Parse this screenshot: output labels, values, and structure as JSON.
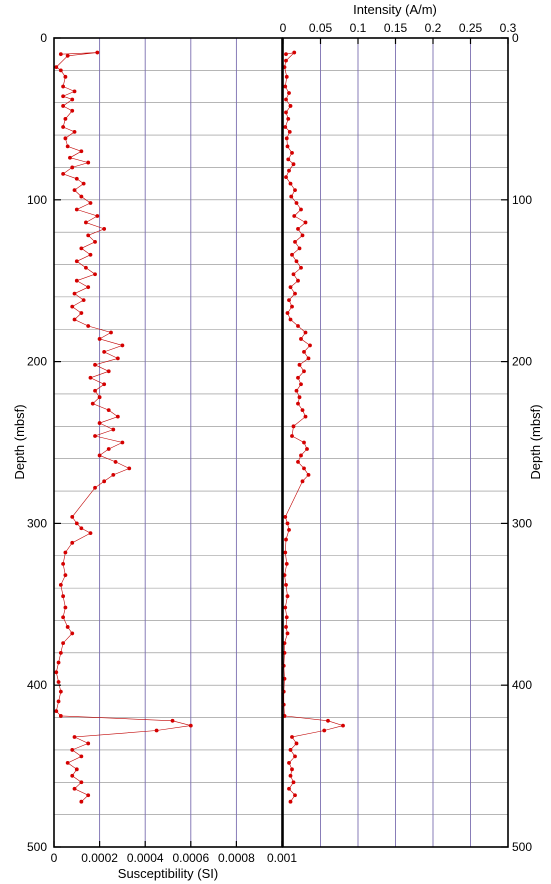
{
  "chart_data": [
    {
      "type": "line",
      "xlabel": "Susceptibility (SI)",
      "ylabel": "Depth (mbsf)",
      "xlim": [
        0,
        0.001
      ],
      "ylim": [
        0,
        500
      ],
      "y_reversed": true,
      "x_ticks": [
        "0",
        "0.0002",
        "0.0004",
        "0.0006",
        "0.0008",
        "0.001"
      ],
      "y_ticks": [
        "0",
        "100",
        "200",
        "300",
        "400",
        "500"
      ],
      "grid": "on",
      "colors": {
        "series": "#c00000",
        "marker": "#d40000",
        "grid": "#7b6fb0"
      },
      "series": [
        {
          "points": [
            [
              3e-05,
              10
            ],
            [
              0.00019,
              9
            ],
            [
              6e-05,
              11
            ],
            [
              1e-05,
              18
            ],
            [
              3e-05,
              20
            ],
            [
              5e-05,
              24
            ],
            [
              4e-05,
              30
            ],
            [
              9e-05,
              33
            ],
            [
              4e-05,
              36
            ],
            [
              8e-05,
              38
            ],
            [
              4e-05,
              42
            ],
            [
              8e-05,
              45
            ],
            [
              5e-05,
              50
            ],
            [
              4e-05,
              55
            ],
            [
              9e-05,
              58
            ],
            [
              5e-05,
              62
            ],
            [
              6e-05,
              67
            ],
            [
              0.00012,
              70
            ],
            [
              7e-05,
              74
            ],
            [
              0.00015,
              77
            ],
            [
              8e-05,
              80
            ],
            [
              4e-05,
              84
            ],
            [
              0.0001,
              87
            ],
            [
              0.00013,
              90
            ],
            [
              9e-05,
              94
            ],
            [
              0.00012,
              98
            ],
            [
              0.00016,
              102
            ],
            [
              0.0001,
              106
            ],
            [
              0.00019,
              110
            ],
            [
              0.00014,
              114
            ],
            [
              0.00022,
              118
            ],
            [
              0.00015,
              122
            ],
            [
              0.00018,
              126
            ],
            [
              0.00012,
              130
            ],
            [
              0.00016,
              134
            ],
            [
              0.0001,
              138
            ],
            [
              0.00014,
              142
            ],
            [
              0.00018,
              146
            ],
            [
              0.0001,
              150
            ],
            [
              0.00015,
              154
            ],
            [
              9e-05,
              158
            ],
            [
              0.00013,
              162
            ],
            [
              8e-05,
              166
            ],
            [
              0.00012,
              170
            ],
            [
              9e-05,
              174
            ],
            [
              0.00015,
              178
            ],
            [
              0.00025,
              182
            ],
            [
              0.0002,
              186
            ],
            [
              0.0003,
              190
            ],
            [
              0.00022,
              194
            ],
            [
              0.00028,
              198
            ],
            [
              0.00018,
              202
            ],
            [
              0.00024,
              206
            ],
            [
              0.00016,
              210
            ],
            [
              0.00022,
              214
            ],
            [
              0.00018,
              218
            ],
            [
              0.0002,
              222
            ],
            [
              0.00017,
              226
            ],
            [
              0.00024,
              230
            ],
            [
              0.00028,
              234
            ],
            [
              0.0002,
              238
            ],
            [
              0.00026,
              242
            ],
            [
              0.00018,
              246
            ],
            [
              0.0003,
              250
            ],
            [
              0.00024,
              254
            ],
            [
              0.0002,
              258
            ],
            [
              0.00027,
              262
            ],
            [
              0.00033,
              266
            ],
            [
              0.00026,
              270
            ],
            [
              0.00022,
              274
            ],
            [
              0.00018,
              278
            ],
            [
              8e-05,
              296
            ],
            [
              0.0001,
              300
            ],
            [
              0.00012,
              303
            ],
            [
              0.00016,
              306
            ],
            [
              8e-05,
              312
            ],
            [
              5e-05,
              318
            ],
            [
              4e-05,
              325
            ],
            [
              5e-05,
              332
            ],
            [
              3e-05,
              338
            ],
            [
              4e-05,
              345
            ],
            [
              5e-05,
              352
            ],
            [
              4e-05,
              358
            ],
            [
              6e-05,
              364
            ],
            [
              8e-05,
              368
            ],
            [
              4e-05,
              374
            ],
            [
              3e-05,
              380
            ],
            [
              2e-05,
              386
            ],
            [
              1e-05,
              392
            ],
            [
              2e-05,
              398
            ],
            [
              3e-05,
              404
            ],
            [
              2e-05,
              410
            ],
            [
              1e-05,
              416
            ],
            [
              3e-05,
              419
            ],
            [
              0.00052,
              422
            ],
            [
              0.0006,
              425
            ],
            [
              0.00045,
              428
            ],
            [
              9e-05,
              432
            ],
            [
              0.00015,
              436
            ],
            [
              8e-05,
              440
            ],
            [
              0.00012,
              444
            ],
            [
              6e-05,
              448
            ],
            [
              0.0001,
              452
            ],
            [
              8e-05,
              456
            ],
            [
              0.00012,
              460
            ],
            [
              9e-05,
              464
            ],
            [
              0.00015,
              468
            ],
            [
              0.00012,
              472
            ]
          ]
        }
      ]
    },
    {
      "type": "line",
      "xlabel": "Intensity (A/m)",
      "ylabel": "Depth (mbsf)",
      "xlim": [
        0,
        0.3
      ],
      "ylim": [
        0,
        500
      ],
      "y_reversed": true,
      "x_ticks": [
        "0",
        "0.05",
        "0.1",
        "0.15",
        "0.2",
        "0.25",
        "0.3"
      ],
      "y_ticks": [
        "0",
        "100",
        "200",
        "300",
        "400",
        "500"
      ],
      "grid": "on",
      "colors": {
        "series": "#c00000",
        "marker": "#d40000",
        "grid": "#7b6fb0"
      },
      "series": [
        {
          "points": [
            [
              0.004,
              10
            ],
            [
              0.015,
              9
            ],
            [
              0.004,
              14
            ],
            [
              0.002,
              18
            ],
            [
              0.005,
              24
            ],
            [
              0.003,
              30
            ],
            [
              0.008,
              34
            ],
            [
              0.004,
              38
            ],
            [
              0.01,
              42
            ],
            [
              0.004,
              46
            ],
            [
              0.007,
              50
            ],
            [
              0.003,
              55
            ],
            [
              0.009,
              58
            ],
            [
              0.005,
              62
            ],
            [
              0.006,
              67
            ],
            [
              0.012,
              71
            ],
            [
              0.007,
              75
            ],
            [
              0.014,
              78
            ],
            [
              0.008,
              82
            ],
            [
              0.004,
              86
            ],
            [
              0.01,
              90
            ],
            [
              0.016,
              94
            ],
            [
              0.011,
              98
            ],
            [
              0.018,
              102
            ],
            [
              0.024,
              106
            ],
            [
              0.015,
              110
            ],
            [
              0.03,
              114
            ],
            [
              0.02,
              118
            ],
            [
              0.026,
              122
            ],
            [
              0.016,
              126
            ],
            [
              0.022,
              130
            ],
            [
              0.012,
              134
            ],
            [
              0.018,
              138
            ],
            [
              0.024,
              142
            ],
            [
              0.014,
              146
            ],
            [
              0.02,
              150
            ],
            [
              0.01,
              154
            ],
            [
              0.016,
              158
            ],
            [
              0.008,
              162
            ],
            [
              0.012,
              166
            ],
            [
              0.006,
              170
            ],
            [
              0.01,
              174
            ],
            [
              0.02,
              178
            ],
            [
              0.03,
              182
            ],
            [
              0.024,
              186
            ],
            [
              0.036,
              190
            ],
            [
              0.028,
              194
            ],
            [
              0.034,
              198
            ],
            [
              0.022,
              202
            ],
            [
              0.028,
              206
            ],
            [
              0.02,
              210
            ],
            [
              0.024,
              214
            ],
            [
              0.018,
              218
            ],
            [
              0.022,
              222
            ],
            [
              0.02,
              226
            ],
            [
              0.026,
              230
            ],
            [
              0.03,
              234
            ],
            [
              0.014,
              240
            ],
            [
              0.012,
              246
            ],
            [
              0.028,
              250
            ],
            [
              0.032,
              254
            ],
            [
              0.024,
              258
            ],
            [
              0.02,
              262
            ],
            [
              0.028,
              266
            ],
            [
              0.034,
              270
            ],
            [
              0.026,
              274
            ],
            [
              0.003,
              296
            ],
            [
              0.006,
              300
            ],
            [
              0.008,
              304
            ],
            [
              0.004,
              310
            ],
            [
              0.003,
              318
            ],
            [
              0.005,
              325
            ],
            [
              0.002,
              332
            ],
            [
              0.004,
              338
            ],
            [
              0.006,
              345
            ],
            [
              0.003,
              352
            ],
            [
              0.005,
              358
            ],
            [
              0.004,
              364
            ],
            [
              0.006,
              368
            ],
            [
              0.002,
              374
            ],
            [
              0.002,
              380
            ],
            [
              0.001,
              388
            ],
            [
              0.002,
              396
            ],
            [
              0.001,
              404
            ],
            [
              0.001,
              412
            ],
            [
              0.002,
              419
            ],
            [
              0.06,
              422
            ],
            [
              0.08,
              425
            ],
            [
              0.055,
              428
            ],
            [
              0.012,
              432
            ],
            [
              0.018,
              436
            ],
            [
              0.01,
              440
            ],
            [
              0.016,
              444
            ],
            [
              0.008,
              448
            ],
            [
              0.012,
              452
            ],
            [
              0.01,
              456
            ],
            [
              0.014,
              460
            ],
            [
              0.008,
              464
            ],
            [
              0.016,
              468
            ],
            [
              0.01,
              472
            ]
          ]
        }
      ]
    }
  ]
}
